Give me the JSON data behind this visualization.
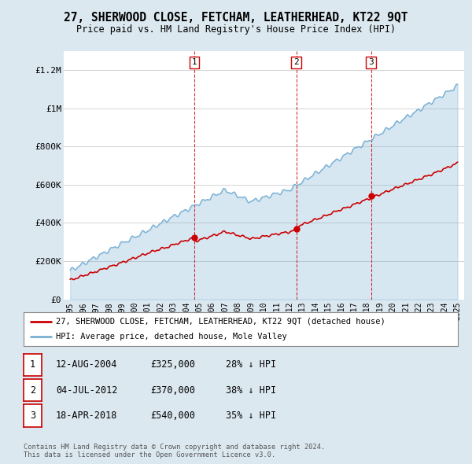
{
  "title": "27, SHERWOOD CLOSE, FETCHAM, LEATHERHEAD, KT22 9QT",
  "subtitle": "Price paid vs. HM Land Registry's House Price Index (HPI)",
  "ylim": [
    0,
    1300000
  ],
  "yticks": [
    0,
    200000,
    400000,
    600000,
    800000,
    1000000,
    1200000
  ],
  "ytick_labels": [
    "£0",
    "£200K",
    "£400K",
    "£600K",
    "£800K",
    "£1M",
    "£1.2M"
  ],
  "xlim_start": 1994.5,
  "xlim_end": 2025.5,
  "hpi_color": "#7ab0d4",
  "price_color": "#cc0000",
  "transaction_dates": [
    2004.617,
    2012.506,
    2018.297
  ],
  "transaction_prices": [
    325000,
    370000,
    540000
  ],
  "transaction_labels": [
    "1",
    "2",
    "3"
  ],
  "vline_color": "#cc0000",
  "legend_line1": "27, SHERWOOD CLOSE, FETCHAM, LEATHERHEAD, KT22 9QT (detached house)",
  "legend_line2": "HPI: Average price, detached house, Mole Valley",
  "table_data": [
    [
      "1",
      "12-AUG-2004",
      "£325,000",
      "28% ↓ HPI"
    ],
    [
      "2",
      "04-JUL-2012",
      "£370,000",
      "38% ↓ HPI"
    ],
    [
      "3",
      "18-APR-2018",
      "£540,000",
      "35% ↓ HPI"
    ]
  ],
  "footnote": "Contains HM Land Registry data © Crown copyright and database right 2024.\nThis data is licensed under the Open Government Licence v3.0.",
  "bg_color": "#dce8f0",
  "plot_bg_color": "#ffffff"
}
